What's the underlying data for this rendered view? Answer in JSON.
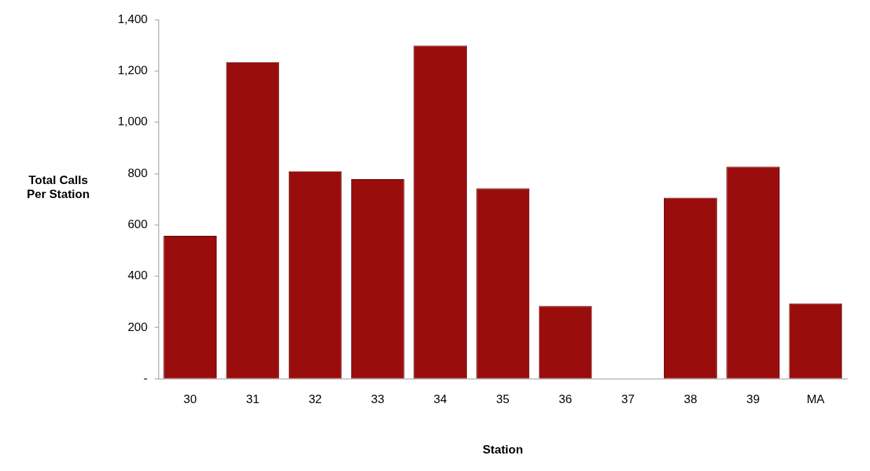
{
  "chart_data": {
    "type": "bar",
    "xlabel": "Station",
    "ylabel": "Total Calls\nPer Station",
    "categories": [
      "30",
      "31",
      "32",
      "33",
      "34",
      "35",
      "36",
      "37",
      "38",
      "39",
      "MA"
    ],
    "values": [
      557,
      1235,
      809,
      778,
      1299,
      742,
      284,
      0,
      706,
      827,
      294
    ],
    "color": "#9a0d0d",
    "ylim": [
      0,
      1400
    ],
    "yticks": [
      {
        "value": 0,
        "label": "-"
      },
      {
        "value": 200,
        "label": "200"
      },
      {
        "value": 400,
        "label": "400"
      },
      {
        "value": 600,
        "label": "600"
      },
      {
        "value": 800,
        "label": "800"
      },
      {
        "value": 1000,
        "label": "1,000"
      },
      {
        "value": 1200,
        "label": "1,200"
      },
      {
        "value": 1400,
        "label": "1,400"
      }
    ],
    "grid": false,
    "legend": false
  }
}
